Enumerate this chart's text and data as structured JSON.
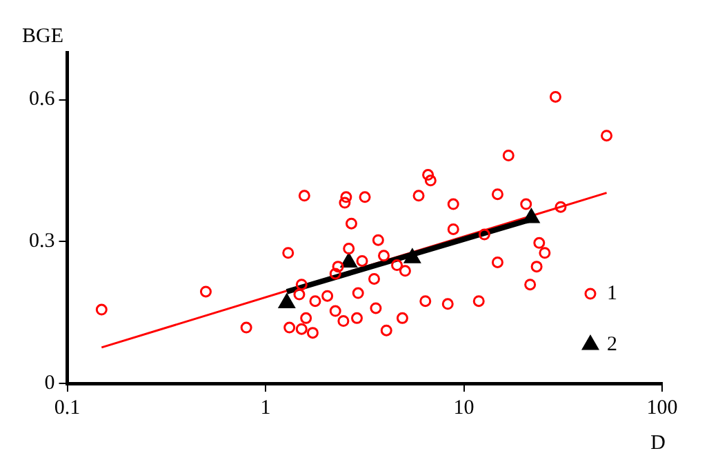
{
  "chart_data": {
    "type": "scatter",
    "xlabel": "D",
    "ylabel": "BGE",
    "log": "x",
    "xlim": [
      0.1,
      100
    ],
    "xticks": [
      0.1,
      1,
      10,
      100
    ],
    "ylim": [
      0,
      0.7
    ],
    "yticks": [
      0,
      0.3,
      0.6
    ],
    "grid": false,
    "legend": "bottom right",
    "series": [
      {
        "name": "1",
        "marker": "circle",
        "color": "#ff0000",
        "x": [
          0.149,
          0.5,
          0.8,
          1.3,
          1.32,
          1.52,
          1.73,
          1.57,
          1.48,
          1.52,
          1.78,
          2.05,
          1.6,
          2.25,
          2.47,
          2.89,
          2.93,
          2.55,
          2.51,
          3.17,
          2.71,
          2.63,
          2.32,
          2.25,
          3.07,
          3.53,
          3.6,
          3.7,
          5.92,
          6.6,
          6.8,
          8.85,
          16.8,
          29.0,
          52.5,
          14.8,
          20.6,
          30.8,
          8.85,
          12.7,
          3.95,
          4.6,
          5.06,
          4.07,
          4.9,
          6.4,
          8.3,
          11.9,
          14.8,
          24.0,
          25.6,
          23.3,
          21.6
        ],
        "values": [
          0.156,
          0.194,
          0.118,
          0.276,
          0.118,
          0.115,
          0.107,
          0.397,
          0.188,
          0.209,
          0.174,
          0.185,
          0.138,
          0.153,
          0.132,
          0.138,
          0.191,
          0.394,
          0.382,
          0.394,
          0.338,
          0.285,
          0.247,
          0.232,
          0.259,
          0.221,
          0.159,
          0.303,
          0.397,
          0.441,
          0.429,
          0.379,
          0.482,
          0.606,
          0.524,
          0.4,
          0.379,
          0.373,
          0.326,
          0.315,
          0.27,
          0.25,
          0.238,
          0.112,
          0.138,
          0.174,
          0.168,
          0.174,
          0.256,
          0.297,
          0.276,
          0.247,
          0.209
        ]
      },
      {
        "name": "2",
        "marker": "triangle",
        "color": "#000000",
        "x": [
          1.28,
          2.63,
          5.5,
          21.9
        ],
        "values": [
          0.17,
          0.256,
          0.265,
          0.35
        ]
      },
      {
        "type": "line",
        "marker": "none",
        "line_style": "solid",
        "color": "#000000",
        "x": [
          1.28,
          21.9
        ],
        "values": [
          0.194,
          0.347
        ]
      },
      {
        "type": "line",
        "marker": "none",
        "line_style": "solid",
        "color": "#ff0000",
        "x": [
          0.149,
          52.5
        ],
        "values": [
          0.076,
          0.403
        ]
      }
    ]
  }
}
